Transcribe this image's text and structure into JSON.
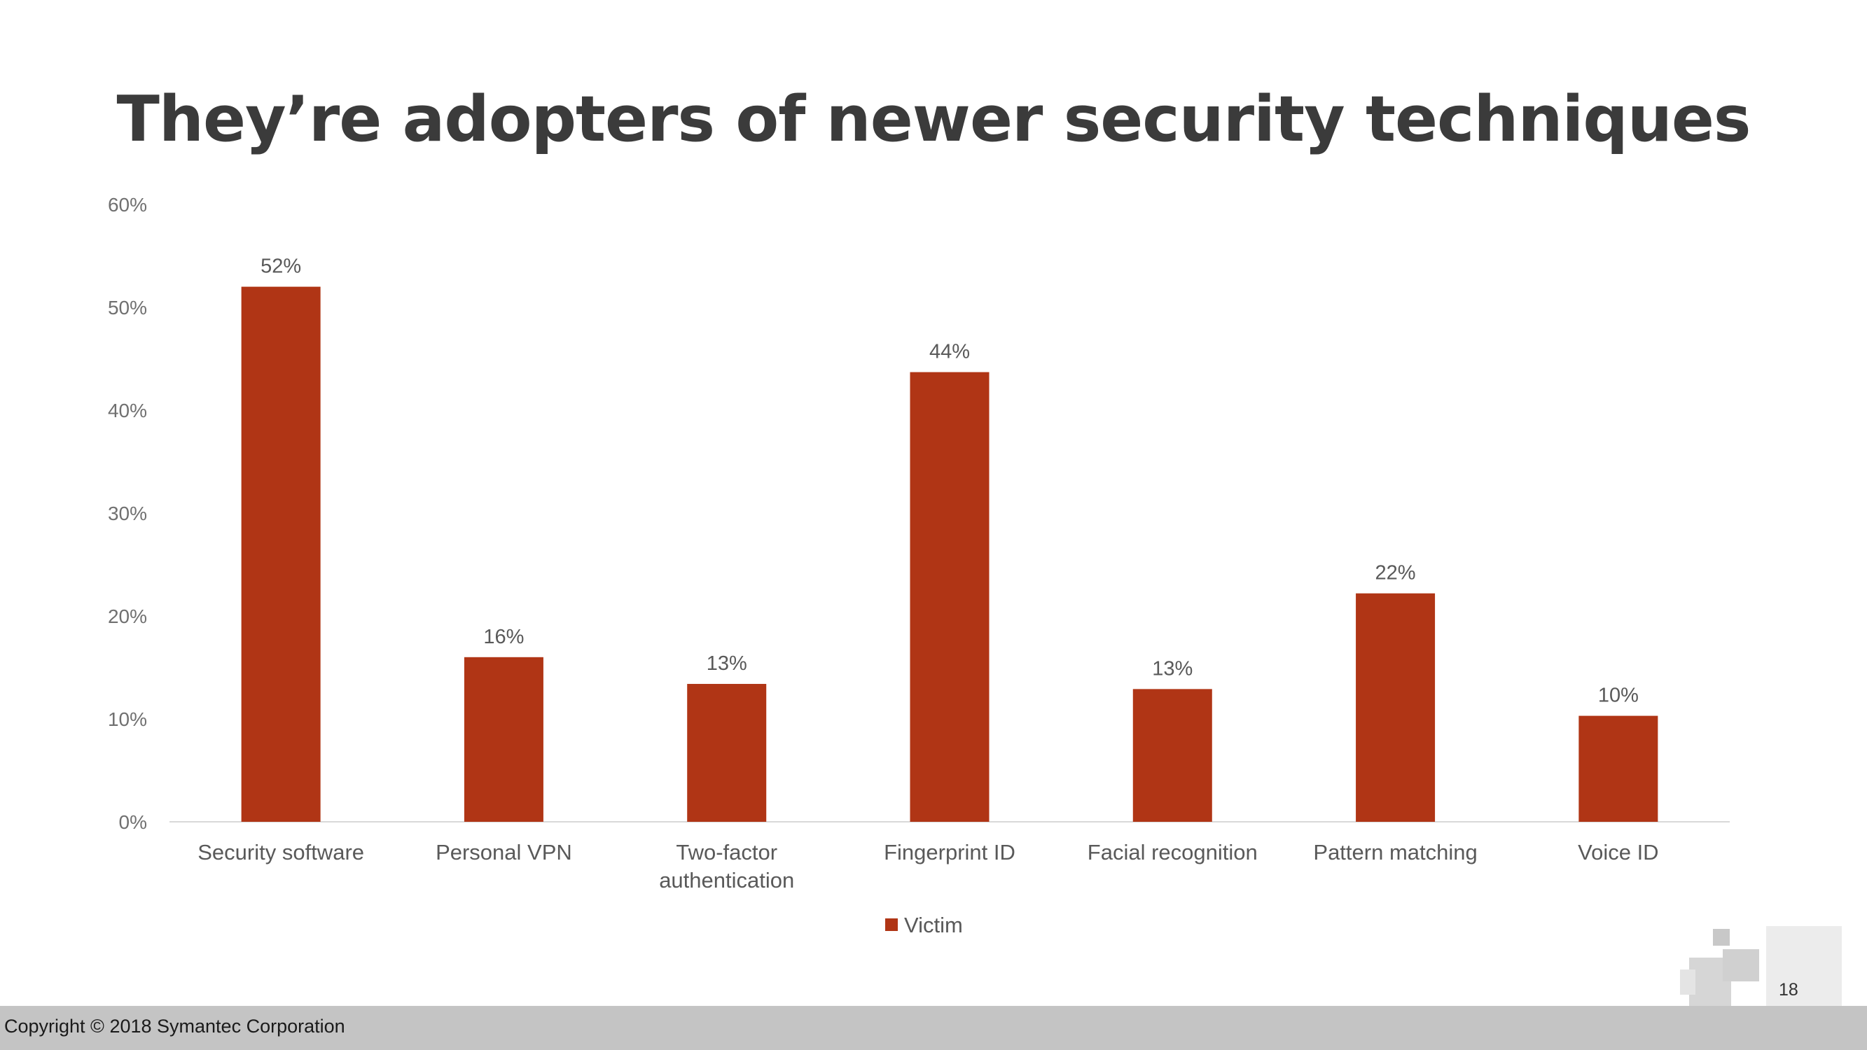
{
  "slide": {
    "title": "They’re adopters of newer security techniques",
    "copyright": "Copyright © 2018 Symantec Corporation",
    "page_number": "18"
  },
  "colors": {
    "bar": "#b03515",
    "axis": "#d9d9d9",
    "title": "#3b3b3b",
    "footer": "#c4c4c4"
  },
  "chart_data": {
    "type": "bar",
    "title": "",
    "xlabel": "",
    "ylabel": "",
    "categories": [
      [
        "Security software"
      ],
      [
        "Personal VPN"
      ],
      [
        "Two-factor",
        "authentication"
      ],
      [
        "Fingerprint ID"
      ],
      [
        "Facial recognition"
      ],
      [
        "Pattern matching"
      ],
      [
        "Voice ID"
      ]
    ],
    "series": [
      {
        "name": "Victim",
        "color": "#b03515",
        "values": [
          52,
          16,
          13.4,
          43.7,
          12.9,
          22.2,
          10.3
        ],
        "data_labels": [
          "52%",
          "16%",
          "13%",
          "44%",
          "13%",
          "22%",
          "10%"
        ]
      }
    ],
    "ylim": [
      0,
      60
    ],
    "yticks": [
      0,
      10,
      20,
      30,
      40,
      50,
      60
    ],
    "ytick_labels": [
      "0%",
      "10%",
      "20%",
      "30%",
      "40%",
      "50%",
      "60%"
    ],
    "grid": false,
    "legend": "bottom"
  }
}
